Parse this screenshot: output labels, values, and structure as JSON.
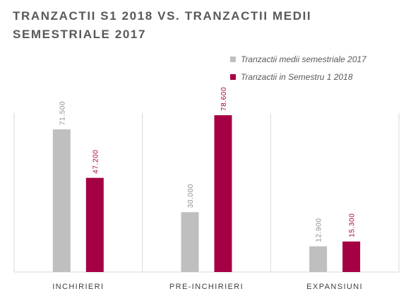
{
  "chart_data": {
    "type": "bar",
    "title": "TRANZACTII S1 2018 VS. TRANZACTII MEDII SEMESTRIALE 2017",
    "categories": [
      "INCHIRIERI",
      "PRE-INCHIRIERI",
      "EXPANSIUNI"
    ],
    "series": [
      {
        "name": "Tranzactii medii semestriale 2017",
        "values": [
          71500,
          30000,
          12900
        ],
        "labels": [
          "71.500",
          "30.000",
          "12.900"
        ],
        "color": "#bfbfbf",
        "label_color": "#8c8c8c"
      },
      {
        "name": "Tranzactii in Semestru 1 2018",
        "values": [
          47200,
          78600,
          15300
        ],
        "labels": [
          "47.200",
          "78.600",
          "15.300"
        ],
        "color": "#a50044",
        "label_color": "#a50044"
      }
    ],
    "ylim": [
      0,
      85000
    ],
    "legend_position": "top-right",
    "grid": false,
    "category_separators": true
  }
}
